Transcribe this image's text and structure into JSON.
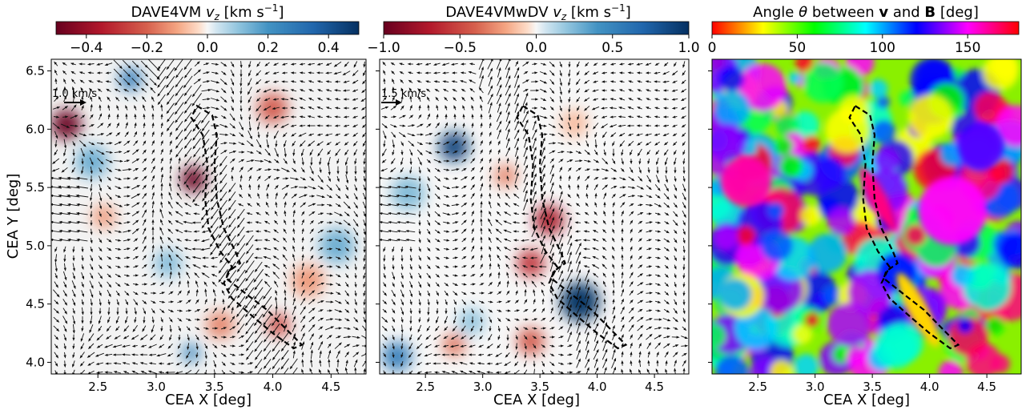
{
  "chart_data": [
    {
      "type": "heatmap",
      "colorbar": {
        "label": "DAVE4VM v_z [km s⁻¹]",
        "label_main": "DAVE4VM ",
        "label_var": "v",
        "label_sub": "z",
        "label_units": " [km s",
        "label_exp": "−1",
        "label_close": "]",
        "colormap": "RdBu",
        "range": [
          -0.5,
          0.5
        ],
        "ticks": [
          -0.4,
          -0.2,
          0.0,
          0.2,
          0.4
        ],
        "tick_labels": [
          "−0.4",
          "−0.2",
          "0.0",
          "0.2",
          "0.4"
        ]
      },
      "xlabel": "CEA X [deg]",
      "ylabel": "CEA Y [deg]",
      "xlim": [
        2.1,
        4.8
      ],
      "ylim": [
        3.9,
        6.6
      ],
      "xticks": [
        2.5,
        3.0,
        3.5,
        4.0,
        4.5
      ],
      "xtick_labels": [
        "2.5",
        "3.0",
        "3.5",
        "4.0",
        "4.5"
      ],
      "yticks": [
        4.0,
        4.5,
        5.0,
        5.5,
        6.0,
        6.5
      ],
      "ytick_labels": [
        "4.0",
        "4.5",
        "5.0",
        "5.5",
        "6.0",
        "6.5"
      ],
      "reference_arrow": {
        "label": "1.0 km/s",
        "speed": 1.0
      },
      "blobs": [
        {
          "x": 2.23,
          "y": 6.04,
          "value": -0.5,
          "r": 0.13
        },
        {
          "x": 3.32,
          "y": 5.57,
          "value": -0.5,
          "r": 0.11
        },
        {
          "x": 2.78,
          "y": 6.43,
          "value": 0.28,
          "r": 0.1
        },
        {
          "x": 4.0,
          "y": 6.18,
          "value": -0.22,
          "r": 0.13
        },
        {
          "x": 2.45,
          "y": 5.72,
          "value": 0.15,
          "r": 0.14
        },
        {
          "x": 3.55,
          "y": 4.32,
          "value": -0.15,
          "r": 0.12
        },
        {
          "x": 3.3,
          "y": 4.08,
          "value": 0.25,
          "r": 0.08
        },
        {
          "x": 4.05,
          "y": 4.32,
          "value": -0.25,
          "r": 0.1
        },
        {
          "x": 2.55,
          "y": 5.25,
          "value": -0.12,
          "r": 0.1
        },
        {
          "x": 4.55,
          "y": 5.0,
          "value": 0.15,
          "r": 0.15
        },
        {
          "x": 3.1,
          "y": 4.85,
          "value": 0.12,
          "r": 0.12
        },
        {
          "x": 4.3,
          "y": 4.7,
          "value": -0.12,
          "r": 0.14
        }
      ],
      "contour": {
        "style": "dashed"
      }
    },
    {
      "type": "heatmap",
      "colorbar": {
        "label": "DAVE4VMwDV v_z [km s⁻¹]",
        "label_main": "DAVE4VMwDV ",
        "label_var": "v",
        "label_sub": "z",
        "label_units": " [km s",
        "label_exp": "−1",
        "label_close": "]",
        "colormap": "RdBu",
        "range": [
          -1.0,
          1.0
        ],
        "ticks": [
          -1.0,
          -0.5,
          0.0,
          0.5,
          1.0
        ],
        "tick_labels": [
          "−1.0",
          "−0.5",
          "0.0",
          "0.5",
          "1.0"
        ]
      },
      "xlabel": "CEA X [deg]",
      "xlim": [
        2.1,
        4.8
      ],
      "ylim": [
        3.9,
        6.6
      ],
      "xticks": [
        2.5,
        3.0,
        3.5,
        4.0,
        4.5
      ],
      "xtick_labels": [
        "2.5",
        "3.0",
        "3.5",
        "4.0",
        "4.5"
      ],
      "reference_arrow": {
        "label": "1.5 km/s",
        "speed": 1.5
      },
      "blobs": [
        {
          "x": 2.75,
          "y": 5.85,
          "value": 0.9,
          "r": 0.13
        },
        {
          "x": 3.58,
          "y": 5.22,
          "value": -0.75,
          "r": 0.13
        },
        {
          "x": 3.42,
          "y": 4.85,
          "value": -0.6,
          "r": 0.12
        },
        {
          "x": 3.85,
          "y": 4.52,
          "value": 1.0,
          "r": 0.17
        },
        {
          "x": 2.25,
          "y": 4.05,
          "value": 0.55,
          "r": 0.13
        },
        {
          "x": 3.42,
          "y": 4.18,
          "value": -0.45,
          "r": 0.12
        },
        {
          "x": 3.2,
          "y": 5.6,
          "value": -0.3,
          "r": 0.1
        },
        {
          "x": 2.35,
          "y": 5.45,
          "value": 0.25,
          "r": 0.15
        },
        {
          "x": 2.9,
          "y": 4.35,
          "value": 0.2,
          "r": 0.12
        },
        {
          "x": 2.75,
          "y": 4.15,
          "value": -0.35,
          "r": 0.1
        },
        {
          "x": 3.8,
          "y": 6.05,
          "value": -0.15,
          "r": 0.12
        }
      ],
      "contour": {
        "style": "dashed"
      }
    },
    {
      "type": "heatmap",
      "colorbar": {
        "label": "Angle θ between v and B [deg]",
        "label_main": "Angle ",
        "label_theta": "θ",
        "label_mid": " between ",
        "label_v": "v",
        "label_and": " and ",
        "label_b": "B",
        "label_close": " [deg]",
        "colormap": "hsv",
        "range": [
          0,
          180
        ],
        "ticks": [
          0,
          50,
          100,
          150
        ],
        "tick_labels": [
          "0",
          "50",
          "100",
          "150"
        ]
      },
      "xlabel": "CEA X [deg]",
      "xlim": [
        2.1,
        4.8
      ],
      "ylim": [
        3.9,
        6.6
      ],
      "xticks": [
        2.5,
        3.0,
        3.5,
        4.0,
        4.5
      ],
      "xtick_labels": [
        "2.5",
        "3.0",
        "3.5",
        "4.0",
        "4.5"
      ],
      "features": [
        {
          "x": 3.55,
          "y": 5.4,
          "value": 165,
          "r": 0.12,
          "note": "magenta band along upper contour"
        },
        {
          "x": 3.9,
          "y": 4.45,
          "value": 25,
          "r": 0.14,
          "note": "orange band along lower contour"
        },
        {
          "x": 4.2,
          "y": 5.3,
          "value": 150,
          "r": 0.3
        },
        {
          "x": 2.4,
          "y": 5.55,
          "value": 160,
          "r": 0.22
        },
        {
          "x": 4.45,
          "y": 5.85,
          "value": 130,
          "r": 0.2
        }
      ],
      "contour": {
        "style": "dashed"
      }
    }
  ]
}
